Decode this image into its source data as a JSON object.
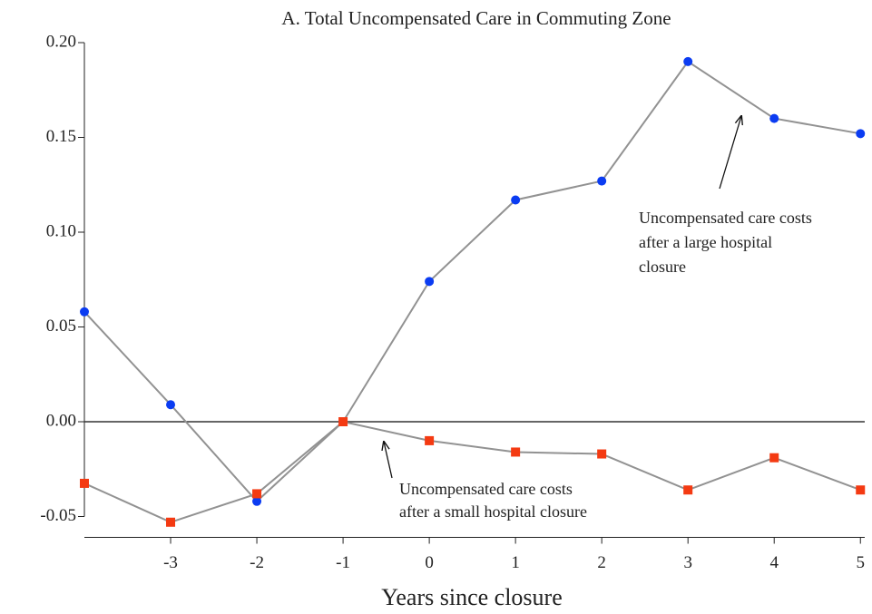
{
  "chart_data": {
    "type": "line",
    "title": "A. Total Uncompensated Care in Commuting Zone",
    "x_label": "Years since closure",
    "x": [
      -4,
      -3,
      -2,
      -1,
      0,
      1,
      2,
      3,
      4,
      5
    ],
    "series": [
      {
        "color": "#0b3cf2",
        "marker": "circle",
        "values": [
          0.058,
          0.009,
          -0.042,
          0,
          0.074,
          0.117,
          0.127,
          0.19,
          0.16,
          0.152
        ]
      },
      {
        "color": "#f43a12",
        "marker": "square",
        "values": [
          -0.0325,
          -0.053,
          -0.038,
          0,
          -0.01,
          -0.016,
          -0.017,
          -0.036,
          -0.019,
          -0.036
        ]
      }
    ],
    "line_color": "#929292",
    "hline": 0,
    "xlim": [
      -4,
      5.05
    ],
    "ylim": [
      -0.061,
      0.2
    ],
    "xticks": [
      -3,
      -2,
      -1,
      0,
      1,
      2,
      3,
      4,
      5
    ],
    "yticks": [
      {
        "value": 0.2,
        "label": "0.20"
      },
      0.15,
      {
        "value": 0.1,
        "label": "0.10"
      },
      0.05,
      {
        "value": 0,
        "label": "0.00"
      },
      -0.05
    ],
    "annotations": [
      {
        "lines": [
          "Uncompensated care costs",
          "after a large hospital",
          "closure"
        ]
      },
      {
        "lines": [
          "Uncompensated care costs",
          "after a small hospital closure"
        ]
      }
    ]
  }
}
